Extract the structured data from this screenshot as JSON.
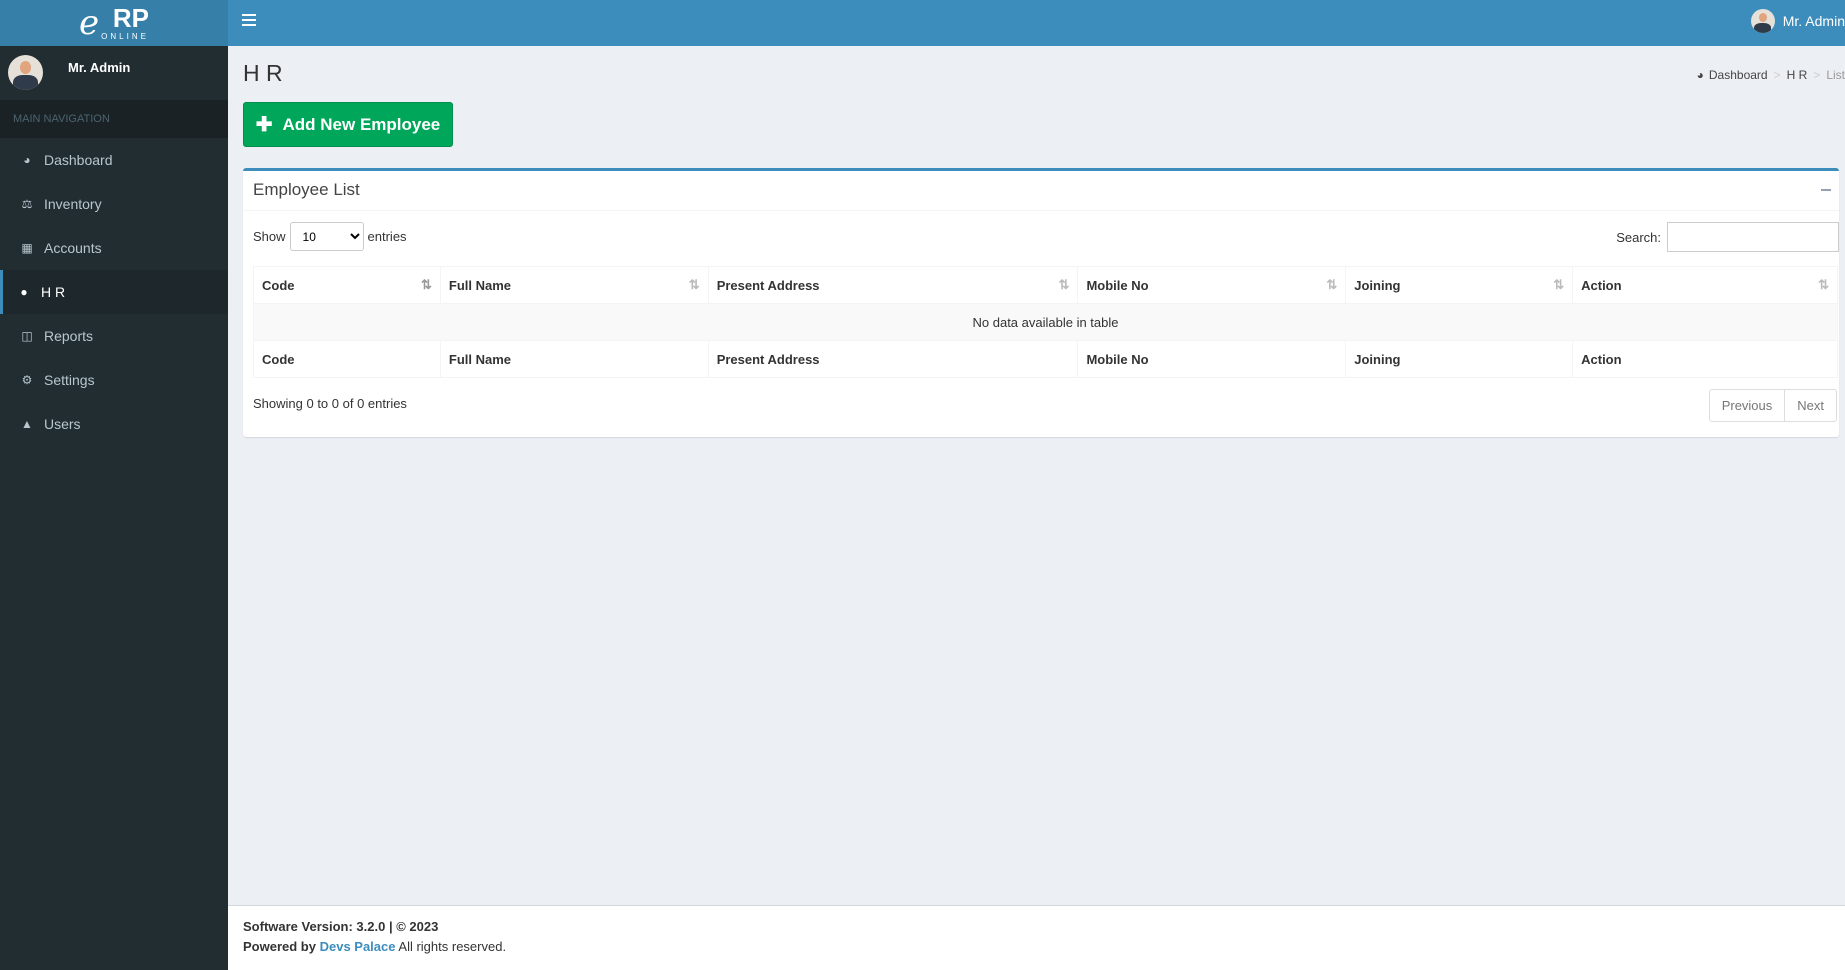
{
  "header": {
    "logo_text": "eRP ONLINE",
    "logo_e": "e",
    "logo_rp": "RP",
    "logo_online": "ONLINE",
    "user_name": "Mr. Admin"
  },
  "sidebar": {
    "user_name": "Mr. Admin",
    "nav_header": "MAIN NAVIGATION",
    "items": [
      {
        "label": "Dashboard",
        "icon": "dashboard-icon"
      },
      {
        "label": "Inventory",
        "icon": "balance-scale-icon"
      },
      {
        "label": "Accounts",
        "icon": "calculator-icon"
      },
      {
        "label": "H R",
        "icon": "users-icon",
        "active": true
      },
      {
        "label": "Reports",
        "icon": "columns-icon"
      },
      {
        "label": "Settings",
        "icon": "gear-icon"
      },
      {
        "label": "Users",
        "icon": "user-icon"
      }
    ]
  },
  "page": {
    "title": "H R",
    "breadcrumb": [
      "Dashboard",
      "H R",
      "List"
    ],
    "add_button": "Add New Employee"
  },
  "box": {
    "title": "Employee List",
    "show_label": "Show",
    "entries_label": "entries",
    "page_length": "10",
    "search_label": "Search:",
    "search_value": "",
    "columns": [
      "Code",
      "Full Name",
      "Present Address",
      "Mobile No",
      "Joining",
      "Action"
    ],
    "empty_text": "No data available in table",
    "info": "Showing 0 to 0 of 0 entries",
    "prev": "Previous",
    "next": "Next"
  },
  "footer": {
    "version": "Software Version: 3.2.0 | © 2023",
    "powered_by": "Powered by",
    "company": "Devs Palace",
    "rights": "All rights reserved."
  },
  "colors": {
    "header": "#3c8dbc",
    "sidebar": "#222d32",
    "success": "#00a65a"
  }
}
